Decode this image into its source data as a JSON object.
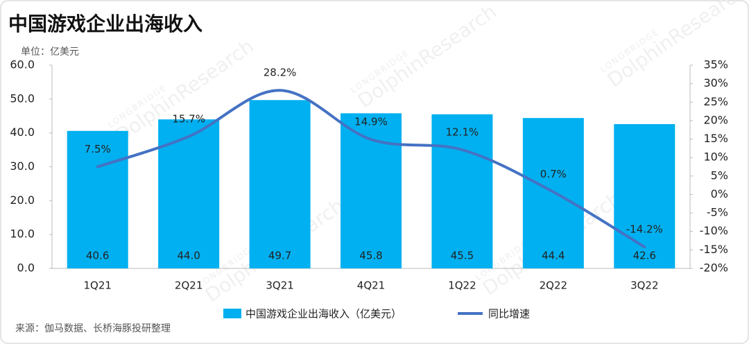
{
  "chart_data": {
    "type": "bar-line",
    "title": "中国游戏企业出海收入",
    "unit_label": "单位：亿美元",
    "source": "来源：伽马数据、长桥海豚投研整理",
    "watermark": [
      "LONGBRIDGE",
      "DolphinResearch"
    ],
    "categories": [
      "1Q21",
      "2Q21",
      "3Q21",
      "4Q21",
      "1Q22",
      "2Q22",
      "3Q22"
    ],
    "series": [
      {
        "name": "中国游戏企业出海收入（亿美元）",
        "type": "bar",
        "color": "#00b0f0",
        "values": [
          40.6,
          44.0,
          49.7,
          45.8,
          45.5,
          44.4,
          42.6
        ],
        "value_labels": [
          "40.6",
          "44.0",
          "49.7",
          "45.8",
          "45.5",
          "44.4",
          "42.6"
        ]
      },
      {
        "name": "同比增速",
        "type": "line",
        "axis": "y2",
        "color": "#4472c4",
        "values": [
          7.5,
          15.7,
          28.2,
          14.9,
          12.1,
          0.7,
          -14.2
        ],
        "value_labels": [
          "7.5%",
          "15.7%",
          "28.2%",
          "14.9%",
          "12.1%",
          "0.7%",
          "-14.2%"
        ]
      }
    ],
    "ylim": [
      0,
      60
    ],
    "yticks": [
      {
        "value": 0,
        "label": "0.0"
      },
      {
        "value": 10,
        "label": "10.0"
      },
      {
        "value": 20,
        "label": "20.0"
      },
      {
        "value": 30,
        "label": "30.0"
      },
      {
        "value": 40,
        "label": "40.0"
      },
      {
        "value": 50,
        "label": "50.0"
      },
      {
        "value": 60,
        "label": "60.0"
      }
    ],
    "y2lim": [
      -20,
      35
    ],
    "y2ticks": [
      {
        "value": -20,
        "label": "-20%"
      },
      {
        "value": -15,
        "label": "-15%"
      },
      {
        "value": -10,
        "label": "-10%"
      },
      {
        "value": -5,
        "label": "-5%"
      },
      {
        "value": 0,
        "label": "0%"
      },
      {
        "value": 5,
        "label": "5%"
      },
      {
        "value": 10,
        "label": "10%"
      },
      {
        "value": 15,
        "label": "15%"
      },
      {
        "value": 20,
        "label": "20%"
      },
      {
        "value": 25,
        "label": "25%"
      },
      {
        "value": 30,
        "label": "30%"
      },
      {
        "value": 35,
        "label": "35%"
      }
    ],
    "grid": false
  }
}
